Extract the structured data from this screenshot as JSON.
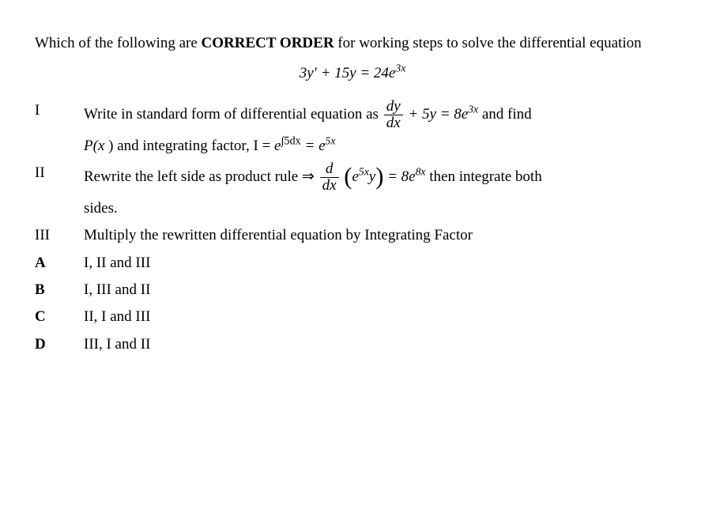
{
  "question": {
    "prefix": "Which of the following are ",
    "emph": "CORRECT ORDER",
    "suffix": " for working steps to solve the differential equation"
  },
  "main_equation": {
    "lhs_pre": "3",
    "y": "y",
    "prime": "′",
    "plus": " + 15",
    "y2": "y",
    "eq": " = 24",
    "e": "e",
    "exp": "3x"
  },
  "steps": {
    "I": {
      "label": "I",
      "pre": "Write in standard form of differential equation  as  ",
      "frac_num": "dy",
      "frac_den": "dx",
      "mid": " + 5",
      "y": "y",
      "eq": " = 8",
      "e": "e",
      "exp": "3x",
      "post": " and find",
      "line2_pre": "P(",
      "line2_x": "x",
      "line2_txt": ") and  integrating factor, I = ",
      "line2_e1": "e",
      "line2_int": "∫5dx",
      "line2_eq": " = ",
      "line2_e2": "e",
      "line2_exp": "5x"
    },
    "II": {
      "label": "II",
      "pre": "Rewrite the left side as product rule ⇒ ",
      "frac_num": "d",
      "frac_den": "dx",
      "inner_e": "e",
      "inner_exp": "5x",
      "inner_y": "y",
      "eq": " = 8",
      "e": "e",
      "exp": "8x",
      "post": " then integrate both",
      "line2": "sides."
    },
    "III": {
      "label": "III",
      "text": "Multiply the rewritten differential equation by Integrating Factor"
    }
  },
  "choices": {
    "A": {
      "label": "A",
      "text": "I, II and III"
    },
    "B": {
      "label": "B",
      "text": "I, III and II"
    },
    "C": {
      "label": "C",
      "text": "II, I and III"
    },
    "D": {
      "label": "D",
      "text": "III, I and II"
    }
  }
}
